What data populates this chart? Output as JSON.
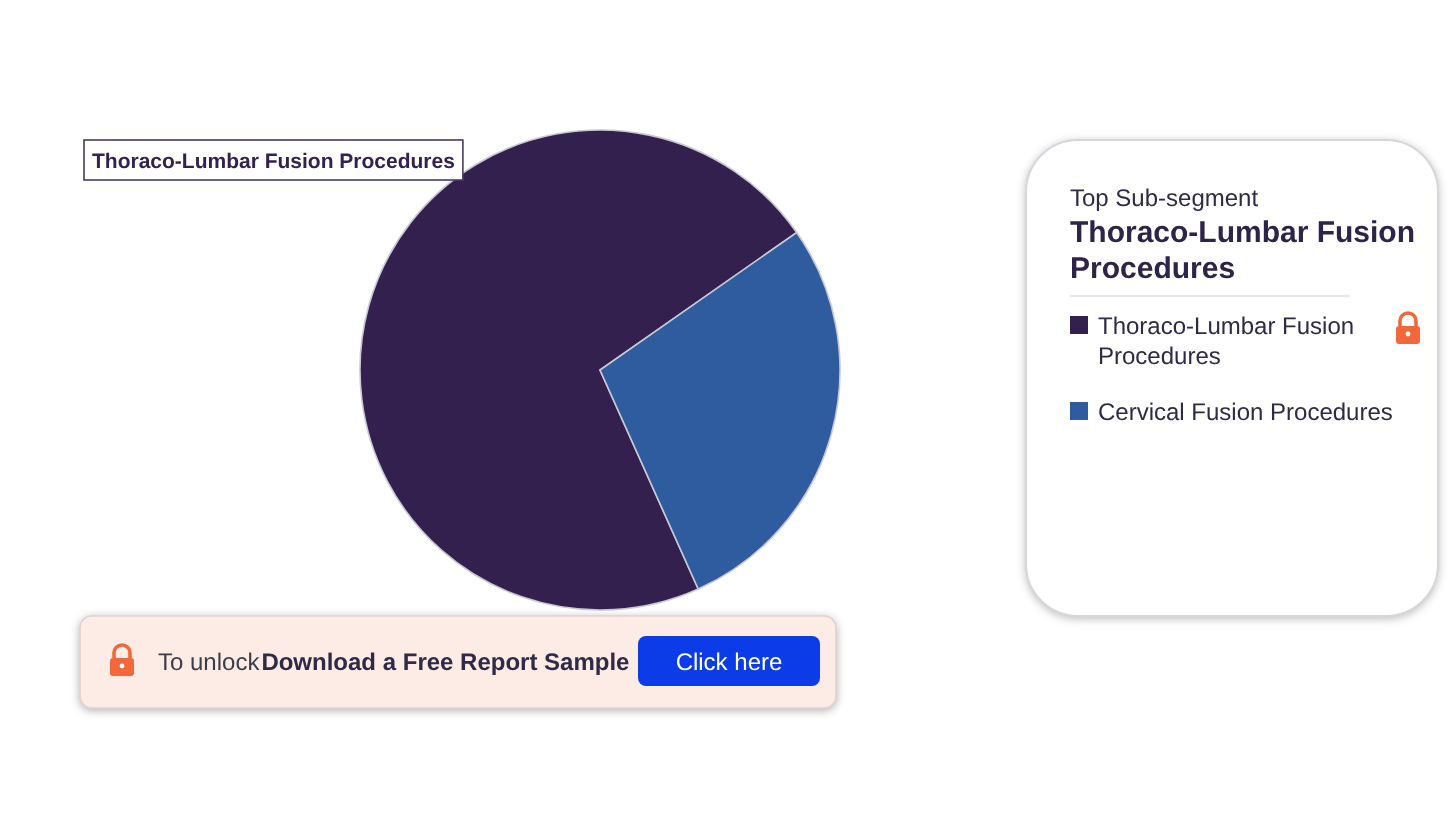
{
  "chart_data": {
    "type": "pie",
    "categories": [
      "Thoraco-Lumbar Fusion Procedures",
      "Cervical Fusion Procedures"
    ],
    "values": [
      72,
      28
    ],
    "colors": [
      "#34204e",
      "#2e5c9e"
    ],
    "legend": "right",
    "annotations": [
      "Top Sub-segment",
      "Thoraco-Lumbar Fusion Procedures",
      "To unlock",
      "Download a Free Report Sample",
      "Click here"
    ]
  }
}
